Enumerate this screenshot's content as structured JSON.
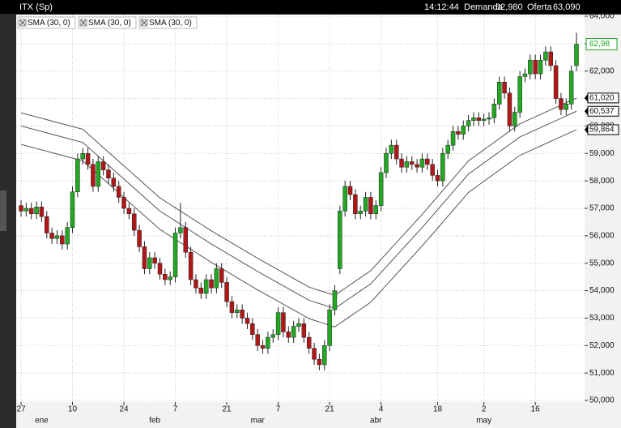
{
  "header": {
    "symbol": "ITX (Sp)",
    "time": "14:12:44",
    "bid_label": "Demanda",
    "bid": "62,980",
    "ask_label": "Oferta",
    "ask": "63,090"
  },
  "chart_data": {
    "type": "candlestick",
    "up_color": "#22a822",
    "down_color": "#b01818",
    "grid": true,
    "ylim": [
      50000,
      64000
    ],
    "yticks": [
      {
        "value": 50000,
        "label": "50,000"
      },
      {
        "value": 51000,
        "label": "51,000"
      },
      {
        "value": 52000,
        "label": "52,000"
      },
      {
        "value": 53000,
        "label": "53,000"
      },
      {
        "value": 54000,
        "label": "54,000"
      },
      {
        "value": 55000,
        "label": "55,000"
      },
      {
        "value": 56000,
        "label": "56,000"
      },
      {
        "value": 57000,
        "label": "57,000"
      },
      {
        "value": 58000,
        "label": "58,000"
      },
      {
        "value": 59000,
        "label": "59,000"
      },
      {
        "value": 60000,
        "label": "60,000"
      },
      {
        "value": 61000,
        "label": "61,000"
      },
      {
        "value": 62000,
        "label": "62,000"
      },
      {
        "value": 63000,
        "label": "63,000"
      },
      {
        "value": 64000,
        "label": "64,000"
      }
    ],
    "categories": [
      "27",
      null,
      null,
      null,
      null,
      null,
      null,
      null,
      null,
      null,
      "10",
      null,
      null,
      null,
      null,
      null,
      null,
      null,
      null,
      null,
      "24",
      null,
      null,
      null,
      null,
      null,
      null,
      null,
      null,
      null,
      "7",
      null,
      null,
      null,
      null,
      null,
      null,
      null,
      null,
      null,
      "21",
      null,
      null,
      null,
      null,
      null,
      null,
      null,
      null,
      null,
      "7",
      null,
      null,
      null,
      null,
      null,
      null,
      null,
      null,
      null,
      "21",
      null,
      null,
      null,
      null,
      null,
      null,
      null,
      null,
      null,
      "4",
      null,
      null,
      null,
      null,
      null,
      null,
      null,
      null,
      null,
      null,
      "18",
      null,
      null,
      null,
      null,
      null,
      null,
      null,
      null,
      "2",
      null,
      null,
      null,
      null,
      null,
      null,
      null,
      null,
      null,
      "16",
      null,
      null,
      null,
      null,
      null,
      null,
      null,
      null
    ],
    "months": [
      null,
      null,
      null,
      null,
      "ene",
      null,
      null,
      null,
      null,
      null,
      null,
      null,
      null,
      null,
      null,
      null,
      null,
      null,
      null,
      null,
      null,
      null,
      null,
      null,
      null,
      null,
      "feb",
      null,
      null,
      null,
      null,
      null,
      null,
      null,
      null,
      null,
      null,
      null,
      null,
      null,
      null,
      null,
      null,
      null,
      null,
      null,
      "mar",
      null,
      null,
      null,
      null,
      null,
      null,
      null,
      null,
      null,
      null,
      null,
      null,
      null,
      null,
      null,
      null,
      null,
      null,
      null,
      null,
      null,
      null,
      "abr",
      null,
      null,
      null,
      null,
      null,
      null,
      null,
      null,
      null,
      null,
      null,
      null,
      null,
      null,
      null,
      null,
      null,
      null,
      null,
      null,
      "may",
      null,
      null,
      null,
      null,
      null,
      null,
      null,
      null,
      null,
      null,
      null,
      null,
      null,
      null,
      null,
      null,
      null,
      null
    ],
    "open": [
      57100,
      56900,
      57000,
      56800,
      57050,
      56700,
      56100,
      55900,
      56000,
      55700,
      56300,
      57600,
      58800,
      59000,
      58600,
      57800,
      58700,
      58400,
      58100,
      57800,
      57400,
      57000,
      56800,
      56200,
      55600,
      54800,
      55200,
      55000,
      54600,
      54400,
      54500,
      56100,
      56300,
      55400,
      54400,
      54100,
      53900,
      54400,
      54100,
      54800,
      54300,
      53600,
      53200,
      53300,
      53000,
      52800,
      52400,
      52000,
      51900,
      52300,
      52400,
      53200,
      52500,
      52300,
      52700,
      52800,
      52300,
      51900,
      51500,
      51300,
      52000,
      53300,
      54800,
      56900,
      57800,
      57500,
      56800,
      56900,
      57400,
      56800,
      57100,
      58300,
      59000,
      59300,
      58800,
      58500,
      58700,
      58600,
      58500,
      58800,
      58600,
      58200,
      58000,
      59000,
      59300,
      59800,
      59700,
      60000,
      60200,
      60300,
      60200,
      60250,
      60300,
      60800,
      61600,
      61200,
      60000,
      60500,
      61800,
      61900,
      62400,
      61900,
      62400,
      62700,
      62200,
      61000,
      60600,
      60800,
      62200
    ],
    "high": [
      57300,
      57200,
      57200,
      57250,
      57250,
      56900,
      56300,
      56200,
      56200,
      56500,
      57800,
      59000,
      59200,
      59200,
      58800,
      58900,
      58900,
      58600,
      58300,
      58000,
      57600,
      57200,
      57000,
      56400,
      55800,
      55400,
      55400,
      55200,
      54800,
      54700,
      56300,
      57200,
      56500,
      55600,
      54600,
      54300,
      54600,
      54600,
      55000,
      55000,
      54500,
      53800,
      53500,
      53500,
      53200,
      53000,
      52600,
      52200,
      52500,
      52600,
      53400,
      53400,
      52700,
      52900,
      53000,
      53000,
      52500,
      52100,
      51700,
      52200,
      53500,
      54200,
      57100,
      58000,
      58000,
      57700,
      57100,
      57600,
      57600,
      57300,
      58500,
      59200,
      59500,
      59500,
      59000,
      58900,
      58900,
      58800,
      59000,
      59000,
      58800,
      58400,
      59200,
      59500,
      60000,
      60000,
      60200,
      60400,
      60500,
      60500,
      60450,
      60500,
      61000,
      61800,
      61800,
      61400,
      60700,
      62000,
      62100,
      62600,
      62600,
      62600,
      62900,
      62900,
      62400,
      61200,
      61000,
      62200,
      63400
    ],
    "low": [
      56700,
      56700,
      56600,
      56600,
      56500,
      55900,
      55700,
      55700,
      55500,
      55500,
      56100,
      57400,
      58600,
      58400,
      57600,
      57600,
      58200,
      57900,
      57600,
      57200,
      56800,
      56600,
      56000,
      55400,
      54600,
      54600,
      54800,
      54400,
      54200,
      54200,
      54300,
      55900,
      55200,
      54200,
      53900,
      53700,
      53700,
      53900,
      53900,
      54100,
      53400,
      53000,
      53000,
      52800,
      52600,
      52200,
      51800,
      51700,
      51700,
      52100,
      52200,
      52300,
      52100,
      52100,
      52500,
      52100,
      51700,
      51300,
      51100,
      51100,
      51800,
      53100,
      54600,
      56700,
      57300,
      56600,
      56600,
      56700,
      56600,
      56600,
      56900,
      58100,
      58800,
      58600,
      58300,
      58300,
      58400,
      58300,
      58300,
      58400,
      58000,
      57800,
      57800,
      58800,
      59100,
      59500,
      59500,
      59800,
      60000,
      60000,
      60000,
      60050,
      60100,
      60600,
      61000,
      59800,
      59800,
      60300,
      61600,
      61700,
      61700,
      61700,
      62200,
      62000,
      60800,
      60400,
      60400,
      60600,
      62000
    ],
    "close": [
      56900,
      57000,
      56800,
      57050,
      56700,
      56100,
      55900,
      56000,
      55700,
      56300,
      57600,
      58800,
      59000,
      58600,
      57800,
      58700,
      58400,
      58100,
      57800,
      57400,
      57000,
      56800,
      56200,
      55600,
      54800,
      55200,
      55000,
      54600,
      54400,
      54500,
      56100,
      56300,
      55400,
      54400,
      54100,
      53900,
      54400,
      54100,
      54800,
      54300,
      53600,
      53200,
      53300,
      53000,
      52800,
      52400,
      52000,
      51900,
      52300,
      52400,
      53200,
      52500,
      52300,
      52700,
      52800,
      52300,
      51900,
      51500,
      51300,
      52000,
      53300,
      54000,
      56900,
      57800,
      57500,
      56800,
      56900,
      57400,
      56800,
      57100,
      58300,
      59000,
      59300,
      58800,
      58500,
      58700,
      58600,
      58500,
      58800,
      58600,
      58200,
      58000,
      59000,
      59300,
      59800,
      59700,
      60000,
      60200,
      60300,
      60200,
      60250,
      60300,
      60800,
      61600,
      61200,
      60000,
      60500,
      61800,
      61900,
      62400,
      61900,
      62400,
      62700,
      62200,
      61000,
      60600,
      60800,
      62000,
      62980
    ],
    "last_close_label": "62,98",
    "series": [
      {
        "name": "SMA (30, 0)",
        "color": "#555555",
        "last_label": "61,020",
        "values": [
          60480,
          60430,
          60380,
          60330,
          60280,
          60230,
          60180,
          60130,
          60080,
          60030,
          59980,
          59930,
          59880,
          59713,
          59547,
          59380,
          59213,
          59047,
          58880,
          58713,
          58547,
          58380,
          58213,
          58047,
          57880,
          57713,
          57547,
          57380,
          57260,
          57140,
          57020,
          56900,
          56780,
          56660,
          56540,
          56420,
          56300,
          56180,
          56069,
          55958,
          55847,
          55736,
          55624,
          55513,
          55402,
          55291,
          55180,
          55075,
          54970,
          54865,
          54760,
          54655,
          54550,
          54445,
          54340,
          54235,
          54130,
          54070,
          54010,
          53950,
          53890,
          53830,
          53959,
          54087,
          54216,
          54344,
          54473,
          54601,
          54730,
          54935,
          55140,
          55345,
          55550,
          55755,
          55960,
          56165,
          56370,
          56575,
          56780,
          56997,
          57213,
          57430,
          57647,
          57863,
          58080,
          58297,
          58513,
          58730,
          58865,
          59000,
          59135,
          59270,
          59405,
          59540,
          59675,
          59810,
          59945,
          60080,
          60165,
          60250,
          60335,
          60421,
          60506,
          60591,
          60676,
          60761,
          60847,
          60932,
          61020
        ]
      },
      {
        "name": "SMA (30, 0)",
        "color": "#555555",
        "last_label": "60,537",
        "values": [
          60000,
          59950,
          59900,
          59850,
          59800,
          59750,
          59700,
          59650,
          59600,
          59550,
          59500,
          59450,
          59400,
          59233,
          59067,
          58900,
          58733,
          58567,
          58400,
          58233,
          58067,
          57900,
          57733,
          57567,
          57400,
          57233,
          57067,
          56900,
          56780,
          56660,
          56540,
          56420,
          56300,
          56180,
          56060,
          55940,
          55820,
          55700,
          55589,
          55478,
          55367,
          55256,
          55144,
          55033,
          54922,
          54811,
          54700,
          54595,
          54490,
          54385,
          54280,
          54175,
          54070,
          53965,
          53860,
          53755,
          53650,
          53590,
          53530,
          53470,
          53410,
          53350,
          53479,
          53607,
          53736,
          53864,
          53993,
          54121,
          54250,
          54455,
          54660,
          54865,
          55070,
          55275,
          55480,
          55685,
          55890,
          56095,
          56300,
          56517,
          56733,
          56950,
          57167,
          57383,
          57600,
          57817,
          58033,
          58250,
          58385,
          58520,
          58655,
          58790,
          58925,
          59060,
          59195,
          59330,
          59465,
          59600,
          59685,
          59770,
          59855,
          59941,
          60026,
          60111,
          60196,
          60281,
          60367,
          60452,
          60537
        ]
      },
      {
        "name": "SMA (30, 0)",
        "color": "#555555",
        "last_label": "59,864",
        "values": [
          59330,
          59280,
          59230,
          59180,
          59130,
          59080,
          59030,
          58980,
          58930,
          58880,
          58830,
          58780,
          58730,
          58563,
          58397,
          58230,
          58063,
          57897,
          57730,
          57563,
          57397,
          57230,
          57063,
          56897,
          56730,
          56563,
          56397,
          56230,
          56110,
          55990,
          55870,
          55750,
          55630,
          55510,
          55390,
          55270,
          55150,
          55030,
          54919,
          54808,
          54697,
          54586,
          54474,
          54363,
          54252,
          54141,
          54030,
          53925,
          53820,
          53715,
          53610,
          53505,
          53400,
          53295,
          53190,
          53085,
          52980,
          52920,
          52860,
          52800,
          52740,
          52680,
          52809,
          52937,
          53066,
          53194,
          53323,
          53451,
          53580,
          53785,
          53990,
          54195,
          54400,
          54605,
          54810,
          55015,
          55220,
          55425,
          55630,
          55847,
          56063,
          56280,
          56497,
          56713,
          56930,
          57147,
          57363,
          57580,
          57715,
          57850,
          57985,
          58120,
          58255,
          58390,
          58525,
          58660,
          58795,
          58930,
          59015,
          59100,
          59185,
          59271,
          59356,
          59441,
          59526,
          59611,
          59697,
          59782,
          59864
        ]
      }
    ]
  }
}
